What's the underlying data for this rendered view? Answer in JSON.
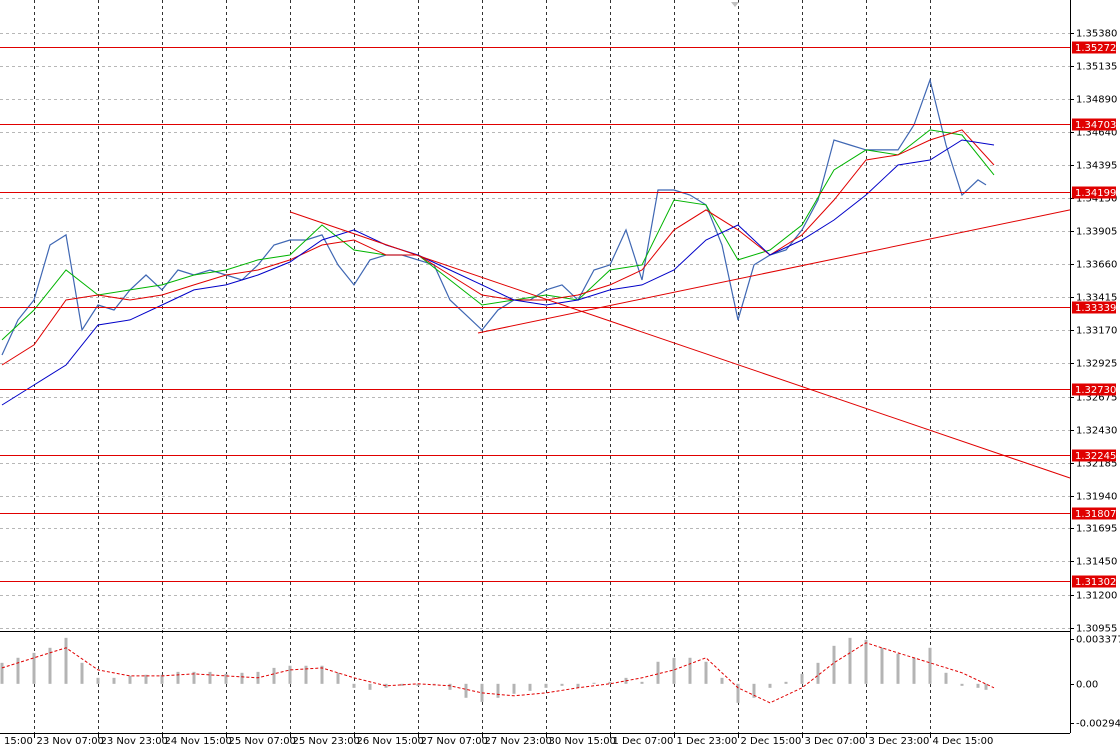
{
  "chart_data": [
    {
      "type": "line",
      "xlim": [
        -0.5,
        267
      ],
      "ylim": [
        1.3094,
        1.35625
      ],
      "grid": true,
      "xticks": [
        {
          "value": -8,
          "label": "15:00"
        },
        {
          "value": 8,
          "label": "23 Nov 07:00"
        },
        {
          "value": 24,
          "label": "23 Nov 23:00"
        },
        {
          "value": 40,
          "label": "24 Nov 15:00"
        },
        {
          "value": 56,
          "label": "25 Nov 07:00"
        },
        {
          "value": 72,
          "label": "25 Nov 23:00"
        },
        {
          "value": 88,
          "label": "26 Nov 15:00"
        },
        {
          "value": 104,
          "label": "27 Nov 07:00"
        },
        {
          "value": 120,
          "label": "27 Nov 23:00"
        },
        {
          "value": 136,
          "label": "30 Nov 15:00"
        },
        {
          "value": 152,
          "label": "1 Dec 07:00"
        },
        {
          "value": 168,
          "label": "1 Dec 23:00"
        },
        {
          "value": 184,
          "label": "2 Dec 15:00"
        },
        {
          "value": 200,
          "label": "3 Dec 07:00"
        },
        {
          "value": 216,
          "label": "3 Dec 23:00"
        },
        {
          "value": 232,
          "label": "4 Dec 15:00"
        }
      ],
      "yticks": [
        {
          "value": 1.3538,
          "label": "1.35380"
        },
        1.35135,
        {
          "value": 1.3489,
          "label": "1.34890"
        },
        {
          "value": 1.3464,
          "label": "1.34640"
        },
        1.34395,
        {
          "value": 1.3415,
          "label": "1.34150"
        },
        1.33905,
        {
          "value": 1.3366,
          "label": "1.33660"
        },
        1.33415,
        {
          "value": 1.3317,
          "label": "1.33170"
        },
        1.32925,
        1.32675,
        {
          "value": 1.3243,
          "label": "1.32430"
        },
        1.32185,
        {
          "value": 1.3194,
          "label": "1.31940"
        },
        1.31695,
        {
          "value": 1.3145,
          "label": "1.31450"
        },
        {
          "value": 1.312,
          "label": "1.31200"
        },
        1.30955
      ],
      "levels": [
        1.35272,
        1.34703,
        1.34199,
        1.33339,
        {
          "value": 1.3273,
          "label": "1.32730"
        },
        1.32245,
        1.31807,
        1.31302
      ],
      "level_color": "#e00000",
      "trendlines": [
        {
          "x": [
            72,
            267
          ],
          "y": [
            1.34049,
            1.3207
          ]
        },
        {
          "x": [
            119,
            267
          ],
          "y": [
            1.33149,
            1.34064
          ]
        }
      ],
      "series": [
        {
          "color": "#3f67b3",
          "x": [
            0,
            4,
            8,
            12,
            16,
            20,
            24,
            28,
            32,
            36,
            40,
            44,
            48,
            52,
            56,
            60,
            64,
            68,
            72,
            76,
            80,
            84,
            88,
            92,
            96,
            100,
            104,
            108,
            112,
            116,
            120,
            124,
            128,
            132,
            136,
            140,
            144,
            148,
            152,
            156,
            160,
            164,
            168,
            172,
            176,
            180,
            184,
            188,
            192,
            196,
            200,
            204,
            208,
            212,
            216,
            220,
            224,
            228,
            232,
            236,
            240,
            244,
            246
          ],
          "values": [
            1.32985,
            1.33246,
            1.33394,
            1.33803,
            1.33878,
            1.33171,
            1.33357,
            1.3332,
            1.33469,
            1.3358,
            1.33469,
            1.33617,
            1.3358,
            1.33617,
            1.3358,
            1.33543,
            1.33655,
            1.33803,
            1.3384,
            1.3384,
            1.33878,
            1.33655,
            1.33506,
            1.33692,
            1.33729,
            1.33729,
            1.33692,
            1.33655,
            1.33394,
            1.33283,
            1.33171,
            1.3332,
            1.33394,
            1.33394,
            1.33469,
            1.33506,
            1.33394,
            1.33617,
            1.33655,
            1.33915,
            1.33543,
            1.34212,
            1.34212,
            1.34175,
            1.34101,
            1.33803,
            1.33246,
            1.33655,
            1.33729,
            1.33766,
            1.33915,
            1.34138,
            1.34584,
            1.34547,
            1.3451,
            1.3451,
            1.3451,
            1.34696,
            1.3503,
            1.34547,
            1.34175,
            1.34287,
            1.3425
          ]
        },
        {
          "color": "#00b400",
          "x": [
            0,
            8,
            16,
            24,
            32,
            40,
            48,
            56,
            64,
            72,
            80,
            88,
            96,
            104,
            112,
            120,
            128,
            136,
            144,
            152,
            160,
            168,
            176,
            184,
            192,
            200,
            208,
            216,
            224,
            232,
            240,
            248
          ],
          "values": [
            1.33097,
            1.3332,
            1.33617,
            1.33431,
            1.33469,
            1.33506,
            1.3358,
            1.33617,
            1.33692,
            1.33729,
            1.33952,
            1.33766,
            1.33729,
            1.33729,
            1.33543,
            1.33357,
            1.33394,
            1.33431,
            1.33394,
            1.33617,
            1.33655,
            1.34138,
            1.34101,
            1.33692,
            1.33766,
            1.33952,
            1.34361,
            1.3451,
            1.34473,
            1.34659,
            1.34621,
            1.34324
          ]
        },
        {
          "color": "#e00000",
          "x": [
            0,
            8,
            16,
            24,
            32,
            40,
            48,
            56,
            64,
            72,
            80,
            88,
            96,
            104,
            112,
            120,
            128,
            136,
            144,
            152,
            160,
            168,
            176,
            184,
            192,
            200,
            208,
            216,
            224,
            232,
            240,
            248
          ],
          "values": [
            1.32911,
            1.3306,
            1.33394,
            1.33431,
            1.33394,
            1.33431,
            1.33506,
            1.3358,
            1.33617,
            1.33692,
            1.33803,
            1.3384,
            1.33729,
            1.33729,
            1.3358,
            1.33431,
            1.33394,
            1.33394,
            1.33431,
            1.33506,
            1.33617,
            1.33915,
            1.34064,
            1.33915,
            1.33729,
            1.33878,
            1.34138,
            1.34435,
            1.34473,
            1.34584,
            1.34659,
            1.34398
          ]
        },
        {
          "color": "#0000c8",
          "x": [
            0,
            8,
            16,
            24,
            32,
            40,
            48,
            56,
            64,
            72,
            80,
            88,
            96,
            104,
            112,
            120,
            128,
            136,
            144,
            152,
            160,
            168,
            176,
            184,
            192,
            200,
            208,
            216,
            224,
            232,
            240,
            248
          ],
          "values": [
            1.32613,
            1.32762,
            1.32911,
            1.33208,
            1.33246,
            1.33357,
            1.33469,
            1.33506,
            1.3358,
            1.33677,
            1.3384,
            1.33915,
            1.33803,
            1.33729,
            1.33617,
            1.33506,
            1.33394,
            1.33357,
            1.33394,
            1.33469,
            1.33506,
            1.33617,
            1.3384,
            1.33952,
            1.33729,
            1.3384,
            1.33989,
            1.34175,
            1.34398,
            1.34435,
            1.34584,
            1.34547
          ]
        }
      ]
    },
    {
      "type": "bar",
      "xlim": [
        -0.5,
        267
      ],
      "ylim": [
        -0.0037,
        0.0039
      ],
      "yticks": [
        0.003377,
        {
          "value": 0,
          "label": "0.00"
        },
        -0.002948
      ],
      "color": "#b4b4b4",
      "x": [
        0,
        4,
        8,
        12,
        16,
        20,
        24,
        28,
        32,
        36,
        40,
        44,
        48,
        52,
        56,
        60,
        64,
        68,
        72,
        76,
        80,
        84,
        88,
        92,
        96,
        100,
        104,
        108,
        112,
        116,
        120,
        124,
        128,
        132,
        136,
        140,
        144,
        148,
        152,
        156,
        160,
        164,
        168,
        172,
        176,
        180,
        184,
        188,
        192,
        196,
        200,
        204,
        208,
        212,
        216,
        220,
        224,
        228,
        232,
        236,
        240,
        244,
        246
      ],
      "values": [
        0.00158,
        0.00196,
        0.00233,
        0.00271,
        0.00346,
        0.00158,
        0.00045,
        0.00045,
        0.0006,
        0.00068,
        0.00068,
        0.0009,
        0.0009,
        0.0009,
        0.00075,
        0.00083,
        0.0009,
        0.0012,
        0.00136,
        0.00136,
        0.00136,
        0.00083,
        -0.0003,
        -0.00045,
        -0.0003,
        -0.00015,
        -0.00015,
        0,
        -0.00045,
        -0.00105,
        -0.00136,
        -0.00105,
        -0.00075,
        -0.00053,
        -0.0003,
        -0.00015,
        -0.0003,
        8e-05,
        0.00015,
        0.00045,
        0.00015,
        0.00166,
        0.00196,
        0.00196,
        0.00166,
        0.00045,
        -0.00143,
        -0.00105,
        -0.0003,
        0.00015,
        0.00075,
        0.00158,
        0.00286,
        0.00346,
        0.00331,
        0.00271,
        0.00226,
        0.00196,
        0.00271,
        0.00083,
        -0.00015,
        -0.0003,
        -0.00045
      ],
      "signal": {
        "color": "#e00000",
        "x": [
          0,
          8,
          16,
          24,
          32,
          40,
          48,
          56,
          64,
          72,
          80,
          88,
          96,
          104,
          112,
          120,
          128,
          136,
          144,
          152,
          160,
          168,
          176,
          184,
          192,
          200,
          208,
          216,
          224,
          232,
          240,
          248
        ],
        "values": [
          0.0012,
          0.00196,
          0.00271,
          0.00105,
          0.0006,
          0.0006,
          0.00075,
          0.0006,
          0.00045,
          0.00105,
          0.0012,
          0.00045,
          -0.00015,
          0,
          -0.00015,
          -0.00068,
          -0.0009,
          -0.00068,
          -0.0003,
          0,
          0.00045,
          0.00105,
          0.00196,
          -0.0003,
          -0.00143,
          -0.0003,
          0.00158,
          0.00309,
          0.00233,
          0.00158,
          0.00083,
          -0.0003
        ]
      }
    }
  ]
}
